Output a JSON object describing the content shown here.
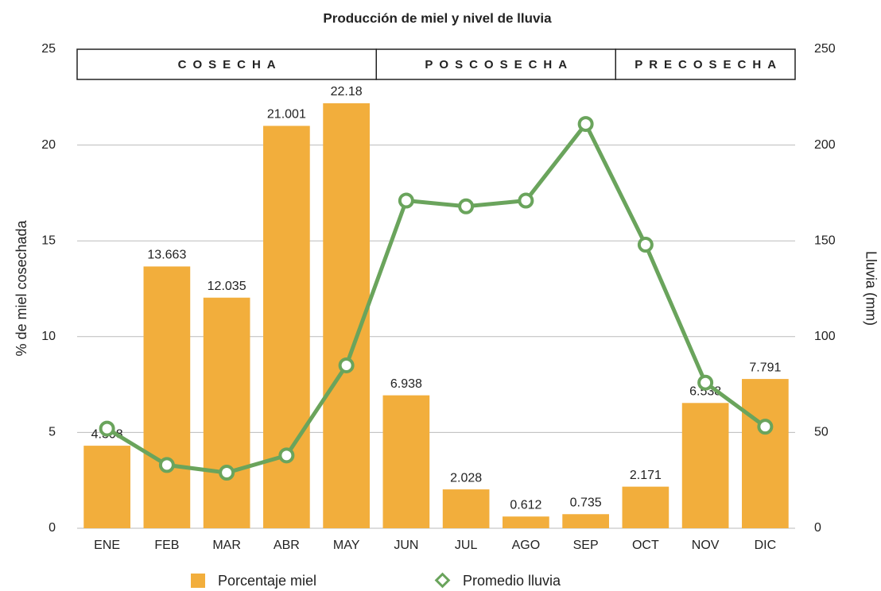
{
  "chart_data": {
    "type": "bar-line",
    "title": "Producción de miel y nivel de lluvia",
    "y_label": "% de miel cosechada",
    "y2_label": "Lluvia (mm)",
    "categories": [
      "ENE",
      "FEB",
      "MAR",
      "ABR",
      "MAY",
      "JUN",
      "JUL",
      "AGO",
      "SEP",
      "OCT",
      "NOV",
      "DIC"
    ],
    "series": [
      {
        "name": "Porcentaje miel",
        "type": "bar",
        "color": "#f2ae3c",
        "values": [
          4.308,
          13.663,
          12.035,
          21.001,
          22.18,
          6.938,
          2.028,
          0.612,
          0.735,
          2.171,
          6.538,
          7.791
        ]
      },
      {
        "name": "Promedio lluvia",
        "type": "line",
        "axis": "y2",
        "color": "#6aa45c",
        "values": [
          52,
          33,
          29,
          38,
          85,
          171,
          168,
          171,
          211,
          148,
          76,
          53
        ]
      }
    ],
    "ylim": [
      0,
      25
    ],
    "yticks": [
      0,
      5,
      10,
      15,
      20,
      25
    ],
    "y2lim": [
      0,
      250
    ],
    "y2ticks": [
      0,
      50,
      100,
      150,
      200,
      250
    ],
    "grid": true,
    "seasons": [
      {
        "label": "COSECHA",
        "from": "ENE",
        "to": "MAY"
      },
      {
        "label": "POSCOSECHA",
        "from": "JUN",
        "to": "SEP"
      },
      {
        "label": "PRECOSECHA",
        "from": "OCT",
        "to": "DIC"
      }
    ]
  }
}
